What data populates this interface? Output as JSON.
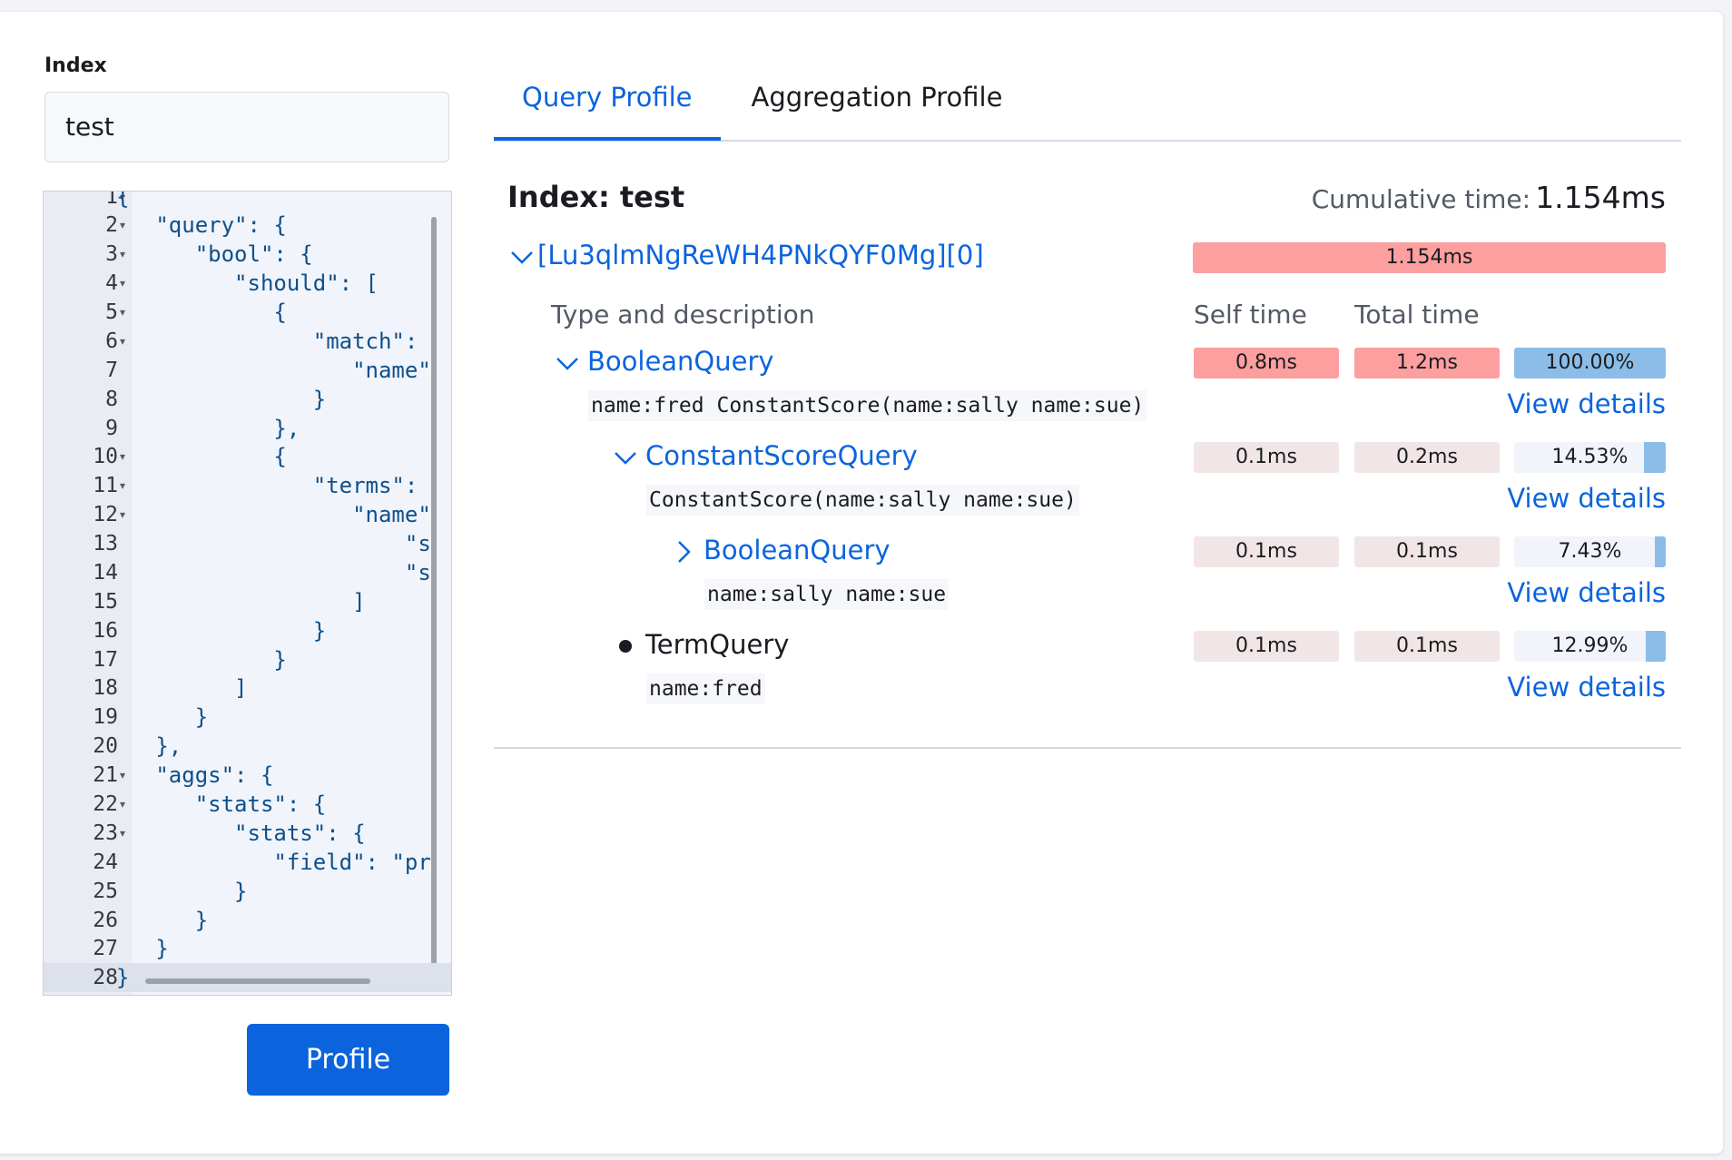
{
  "index_field": {
    "label": "Index",
    "value": "test"
  },
  "editor": {
    "lines": [
      {
        "number": 1,
        "text": "{",
        "foldable": true
      },
      {
        "number": 2,
        "text": "   \"query\": {",
        "foldable": true
      },
      {
        "number": 3,
        "text": "      \"bool\": {",
        "foldable": true
      },
      {
        "number": 4,
        "text": "         \"should\": [",
        "foldable": true
      },
      {
        "number": 5,
        "text": "            {",
        "foldable": true
      },
      {
        "number": 6,
        "text": "               \"match\":",
        "foldable": true
      },
      {
        "number": 7,
        "text": "                  \"name\"",
        "foldable": false
      },
      {
        "number": 8,
        "text": "               }",
        "foldable": false
      },
      {
        "number": 9,
        "text": "            },",
        "foldable": false
      },
      {
        "number": 10,
        "text": "            {",
        "foldable": true
      },
      {
        "number": 11,
        "text": "               \"terms\":",
        "foldable": true
      },
      {
        "number": 12,
        "text": "                  \"name\"",
        "foldable": true
      },
      {
        "number": 13,
        "text": "                      \"s",
        "foldable": false
      },
      {
        "number": 14,
        "text": "                      \"s",
        "foldable": false
      },
      {
        "number": 15,
        "text": "                  ]",
        "foldable": false
      },
      {
        "number": 16,
        "text": "               }",
        "foldable": false
      },
      {
        "number": 17,
        "text": "            }",
        "foldable": false
      },
      {
        "number": 18,
        "text": "         ]",
        "foldable": false
      },
      {
        "number": 19,
        "text": "      }",
        "foldable": false
      },
      {
        "number": 20,
        "text": "   },",
        "foldable": false
      },
      {
        "number": 21,
        "text": "   \"aggs\": {",
        "foldable": true
      },
      {
        "number": 22,
        "text": "      \"stats\": {",
        "foldable": true
      },
      {
        "number": 23,
        "text": "         \"stats\": {",
        "foldable": true
      },
      {
        "number": 24,
        "text": "            \"field\": \"pr",
        "foldable": false
      },
      {
        "number": 25,
        "text": "         }",
        "foldable": false
      },
      {
        "number": 26,
        "text": "      }",
        "foldable": false
      },
      {
        "number": 27,
        "text": "   }",
        "foldable": false
      },
      {
        "number": 28,
        "text": "}",
        "foldable": false,
        "active": true
      }
    ]
  },
  "button": "Profile",
  "tabs": [
    {
      "label": "Query Profile",
      "selected": true
    },
    {
      "label": "Aggregation Profile",
      "selected": false
    }
  ],
  "profile": {
    "title": "Index: test",
    "cumulative_label": "Cumulative time:",
    "cumulative_value": "1.154ms",
    "shard": {
      "id": "[Lu3qlmNgReWH4PNkQYF0Mg][0]",
      "time": "1.154ms"
    },
    "headers": [
      "Type and description",
      "Self time",
      "Total time"
    ],
    "rows": [
      {
        "name": "BooleanQuery",
        "description": "name:fred ConstantScore(name:sally name:sue)",
        "depth": 0,
        "state": "expanded",
        "self_time": "0.8ms",
        "total_time": "1.2ms",
        "heavy": true,
        "percent": 100,
        "percent_label": "100.00%",
        "link": "View details"
      },
      {
        "name": "ConstantScoreQuery",
        "description": "ConstantScore(name:sally name:sue)",
        "depth": 1,
        "state": "expanded",
        "self_time": "0.1ms",
        "total_time": "0.2ms",
        "heavy": false,
        "percent": 14.53,
        "percent_label": "14.53%",
        "link": "View details"
      },
      {
        "name": "BooleanQuery",
        "description": "name:sally name:sue",
        "depth": 2,
        "state": "collapsed",
        "self_time": "0.1ms",
        "total_time": "0.1ms",
        "heavy": false,
        "percent": 7.43,
        "percent_label": "7.43%",
        "link": "View details"
      },
      {
        "name": "TermQuery",
        "description": "name:fred",
        "depth": 1,
        "state": "leaf",
        "self_time": "0.1ms",
        "total_time": "0.1ms",
        "heavy": false,
        "percent": 12.99,
        "percent_label": "12.99%",
        "link": "View details"
      }
    ]
  }
}
